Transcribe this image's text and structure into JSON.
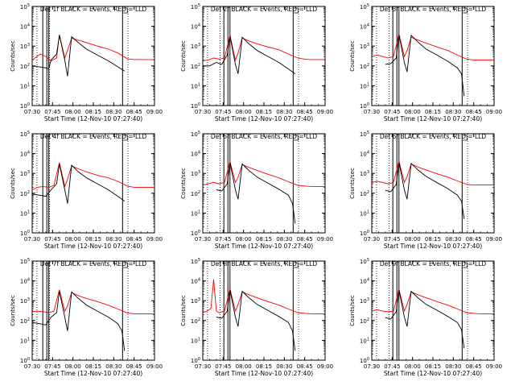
{
  "figure": {
    "y_axis_label": "Counts/sec",
    "x_axis_label": "Start Time (12-Nov-10 07:27:40)"
  },
  "colors": {
    "events": "#000000",
    "lld": "#ff0000",
    "axes": "#000000"
  },
  "chart_data": [
    {
      "type": "line",
      "title": "Det 1f BLACK = Events, RED = LLD",
      "xlabel": "Start Time (12-Nov-10 07:27:40)",
      "ylabel": "Counts/sec",
      "yscale": "log",
      "ylim": [
        1,
        100000
      ],
      "xlim": [
        "07:30",
        "09:00"
      ],
      "x_tick_labels": [
        "07:30",
        "07:45",
        "08:00",
        "08:15",
        "08:30",
        "08:45",
        "09:00"
      ],
      "y_tick_labels": [
        "10^0",
        "10^1",
        "10^2",
        "10^3",
        "10^4",
        "10^5"
      ],
      "grid": false,
      "vertical_markers_minutes": [
        7.8,
        10.8,
        12.2,
        66.5
      ],
      "vertical_dotted_minutes": [
        3.5,
        12.8,
        70.5
      ],
      "events": {
        "x_minutes": [
          0,
          5,
          10,
          12,
          14,
          18,
          20,
          24,
          26,
          29,
          34,
          40,
          48,
          56,
          63,
          68
        ],
        "y": [
          100,
          90,
          80,
          70,
          200,
          400,
          3500,
          200,
          30,
          3000,
          1500,
          700,
          350,
          180,
          90,
          55
        ]
      },
      "lld": {
        "x_minutes": [
          0,
          2,
          6,
          10,
          14,
          18,
          20,
          24,
          26,
          29,
          34,
          40,
          48,
          56,
          63,
          70,
          75,
          80,
          85,
          90
        ],
        "y": [
          200,
          250,
          400,
          300,
          180,
          250,
          3800,
          250,
          600,
          2500,
          2000,
          1500,
          1000,
          700,
          450,
          230,
          210,
          210,
          210,
          210
        ]
      }
    },
    {
      "type": "line",
      "title": "Det 2f BLACK = Events, RED = LLD",
      "xlabel": "Start Time (12-Nov-10 07:27:40)",
      "ylabel": "Counts/sec",
      "yscale": "log",
      "ylim": [
        1,
        100000
      ],
      "xlim": [
        "07:30",
        "09:00"
      ],
      "x_tick_labels": [
        "07:30",
        "07:45",
        "08:00",
        "08:15",
        "08:30",
        "08:45",
        "09:00"
      ],
      "y_tick_labels": [
        "10^0",
        "10^1",
        "10^2",
        "10^3",
        "10^4",
        "10^5"
      ],
      "grid": false,
      "vertical_markers_minutes": [
        15.5,
        18.5,
        20.0,
        66.5
      ],
      "vertical_dotted_minutes": [
        3.5,
        12.8,
        70.5
      ],
      "events": {
        "x_minutes": [
          0,
          5,
          10,
          14,
          18,
          20,
          24,
          26,
          29,
          34,
          40,
          48,
          56,
          63,
          68
        ],
        "y": [
          100,
          100,
          150,
          120,
          350,
          3200,
          120,
          40,
          2800,
          1300,
          600,
          300,
          150,
          70,
          40
        ]
      },
      "lld": {
        "x_minutes": [
          0,
          4,
          8,
          12,
          16,
          20,
          24,
          26,
          29,
          34,
          40,
          48,
          56,
          63,
          70,
          75,
          80,
          85,
          90
        ],
        "y": [
          180,
          200,
          250,
          220,
          250,
          3500,
          200,
          450,
          2600,
          1800,
          1300,
          900,
          650,
          400,
          250,
          220,
          210,
          210,
          210
        ]
      }
    },
    {
      "type": "line",
      "title": "Det 3f BLACK = Events, RED = LLD",
      "xlabel": "Start Time (12-Nov-10 07:27:40)",
      "ylabel": "Counts/sec",
      "yscale": "log",
      "ylim": [
        1,
        100000
      ],
      "xlim": [
        "07:30",
        "09:00"
      ],
      "x_tick_labels": [
        "07:30",
        "07:45",
        "08:00",
        "08:15",
        "08:30",
        "08:45",
        "09:00"
      ],
      "y_tick_labels": [
        "10^0",
        "10^1",
        "10^2",
        "10^3",
        "10^4",
        "10^5"
      ],
      "grid": false,
      "vertical_markers_minutes": [
        15.5,
        18.5,
        20.0,
        66.5
      ],
      "vertical_dotted_minutes": [
        3.5,
        12.8,
        70.5
      ],
      "events": {
        "x_minutes": [
          10,
          14,
          18,
          20,
          24,
          26,
          29,
          34,
          40,
          48,
          56,
          63,
          66,
          68
        ],
        "y": [
          120,
          130,
          250,
          3800,
          150,
          50,
          3500,
          1600,
          700,
          350,
          170,
          80,
          40,
          3
        ]
      },
      "lld": {
        "x_minutes": [
          0,
          4,
          8,
          12,
          16,
          20,
          24,
          26,
          29,
          34,
          40,
          48,
          56,
          63,
          70,
          75,
          80,
          85,
          90
        ],
        "y": [
          300,
          350,
          300,
          250,
          300,
          4000,
          300,
          600,
          2800,
          2000,
          1400,
          900,
          600,
          350,
          220,
          200,
          200,
          200,
          200
        ]
      }
    },
    {
      "type": "line",
      "title": "Det 4f BLACK = Events, RED = LLD",
      "xlabel": "Start Time (12-Nov-10 07:27:40)",
      "ylabel": "Counts/sec",
      "yscale": "log",
      "ylim": [
        1,
        100000
      ],
      "xlim": [
        "07:30",
        "09:00"
      ],
      "x_tick_labels": [
        "07:30",
        "07:45",
        "08:00",
        "08:15",
        "08:30",
        "08:45",
        "09:00"
      ],
      "y_tick_labels": [
        "10^0",
        "10^1",
        "10^2",
        "10^3",
        "10^4",
        "10^5"
      ],
      "grid": false,
      "vertical_markers_minutes": [
        7.8,
        10.8,
        12.2,
        66.5
      ],
      "vertical_dotted_minutes": [
        3.5,
        12.8,
        70.5
      ],
      "events": {
        "x_minutes": [
          0,
          5,
          10,
          14,
          18,
          20,
          24,
          26,
          29,
          34,
          40,
          48,
          56,
          63,
          68
        ],
        "y": [
          90,
          80,
          70,
          150,
          300,
          3000,
          150,
          30,
          2600,
          1200,
          600,
          300,
          150,
          70,
          40
        ]
      },
      "lld": {
        "x_minutes": [
          0,
          4,
          8,
          12,
          16,
          20,
          24,
          26,
          29,
          34,
          40,
          48,
          56,
          63,
          70,
          75,
          80,
          85,
          90
        ],
        "y": [
          150,
          200,
          220,
          200,
          250,
          3500,
          220,
          500,
          2400,
          1700,
          1200,
          800,
          600,
          400,
          230,
          200,
          200,
          200,
          200
        ]
      }
    },
    {
      "type": "line",
      "title": "Det 5f BLACK = Events, RED = LLD",
      "xlabel": "Start Time (12-Nov-10 07:27:40)",
      "ylabel": "Counts/sec",
      "yscale": "log",
      "ylim": [
        1,
        100000
      ],
      "xlim": [
        "07:30",
        "09:00"
      ],
      "x_tick_labels": [
        "07:30",
        "07:45",
        "08:00",
        "08:15",
        "08:30",
        "08:45",
        "09:00"
      ],
      "y_tick_labels": [
        "10^0",
        "10^1",
        "10^2",
        "10^3",
        "10^4",
        "10^5"
      ],
      "grid": false,
      "vertical_markers_minutes": [
        15.5,
        18.5,
        20.0,
        66.5
      ],
      "vertical_dotted_minutes": [
        3.5,
        12.8,
        70.5
      ],
      "events": {
        "x_minutes": [
          10,
          14,
          18,
          20,
          24,
          26,
          29,
          34,
          40,
          48,
          56,
          63,
          66,
          68
        ],
        "y": [
          150,
          130,
          300,
          3500,
          150,
          50,
          3000,
          1400,
          650,
          320,
          160,
          80,
          30,
          3
        ]
      },
      "lld": {
        "x_minutes": [
          0,
          4,
          8,
          12,
          16,
          20,
          24,
          26,
          29,
          34,
          40,
          48,
          56,
          63,
          70,
          75,
          80,
          85,
          90
        ],
        "y": [
          250,
          300,
          350,
          300,
          350,
          4000,
          350,
          650,
          2800,
          2000,
          1400,
          900,
          600,
          380,
          250,
          230,
          220,
          220,
          220
        ]
      }
    },
    {
      "type": "line",
      "title": "Det 6f BLACK = Events, RED = LLD",
      "xlabel": "Start Time (12-Nov-10 07:27:40)",
      "ylabel": "Counts/sec",
      "yscale": "log",
      "ylim": [
        1,
        100000
      ],
      "xlim": [
        "07:30",
        "09:00"
      ],
      "x_tick_labels": [
        "07:30",
        "07:45",
        "08:00",
        "08:15",
        "08:30",
        "08:45",
        "09:00"
      ],
      "y_tick_labels": [
        "10^0",
        "10^1",
        "10^2",
        "10^3",
        "10^4",
        "10^5"
      ],
      "grid": false,
      "vertical_markers_minutes": [
        15.5,
        18.5,
        20.0,
        66.5
      ],
      "vertical_dotted_minutes": [
        3.5,
        12.8,
        70.5
      ],
      "events": {
        "x_minutes": [
          10,
          14,
          18,
          20,
          24,
          26,
          29,
          34,
          40,
          48,
          56,
          63,
          66,
          68
        ],
        "y": [
          140,
          120,
          280,
          3600,
          150,
          50,
          3200,
          1500,
          700,
          340,
          170,
          80,
          40,
          5
        ]
      },
      "lld": {
        "x_minutes": [
          0,
          4,
          8,
          12,
          16,
          20,
          24,
          26,
          29,
          34,
          40,
          48,
          56,
          63,
          70,
          75,
          80,
          85,
          90
        ],
        "y": [
          350,
          400,
          350,
          300,
          350,
          4200,
          350,
          700,
          3000,
          2100,
          1500,
          950,
          650,
          420,
          280,
          260,
          260,
          260,
          260
        ]
      }
    },
    {
      "type": "line",
      "title": "Det 7f BLACK = Events, RED = LLD",
      "xlabel": "Start Time (12-Nov-10 07:27:40)",
      "ylabel": "Counts/sec",
      "yscale": "log",
      "ylim": [
        1,
        100000
      ],
      "xlim": [
        "07:30",
        "09:00"
      ],
      "x_tick_labels": [
        "07:30",
        "07:45",
        "08:00",
        "08:15",
        "08:30",
        "08:45",
        "09:00"
      ],
      "y_tick_labels": [
        "10^0",
        "10^1",
        "10^2",
        "10^3",
        "10^4",
        "10^5"
      ],
      "grid": false,
      "vertical_markers_minutes": [
        7.8,
        10.8,
        12.2,
        66.5
      ],
      "vertical_dotted_minutes": [
        3.5,
        12.8,
        70.5
      ],
      "events": {
        "x_minutes": [
          0,
          5,
          10,
          14,
          18,
          20,
          24,
          26,
          29,
          34,
          40,
          48,
          56,
          63,
          66,
          68
        ],
        "y": [
          80,
          70,
          60,
          150,
          250,
          3000,
          150,
          30,
          2800,
          1300,
          600,
          300,
          150,
          70,
          30,
          3
        ]
      },
      "lld": {
        "x_minutes": [
          0,
          4,
          8,
          12,
          16,
          20,
          24,
          26,
          29,
          34,
          40,
          48,
          56,
          63,
          70,
          75,
          80,
          85,
          90
        ],
        "y": [
          280,
          300,
          280,
          250,
          300,
          3600,
          300,
          550,
          2600,
          1800,
          1300,
          900,
          600,
          380,
          240,
          220,
          220,
          220,
          220
        ]
      }
    },
    {
      "type": "line",
      "title": "Det 8f BLACK = Events, RED = LLD",
      "xlabel": "Start Time (12-Nov-10 07:27:40)",
      "ylabel": "Counts/sec",
      "yscale": "log",
      "ylim": [
        1,
        100000
      ],
      "xlim": [
        "07:30",
        "09:00"
      ],
      "x_tick_labels": [
        "07:30",
        "07:45",
        "08:00",
        "08:15",
        "08:30",
        "08:45",
        "09:00"
      ],
      "y_tick_labels": [
        "10^0",
        "10^1",
        "10^2",
        "10^3",
        "10^4",
        "10^5"
      ],
      "grid": false,
      "vertical_markers_minutes": [
        15.5,
        18.5,
        20.0,
        66.5
      ],
      "vertical_dotted_minutes": [
        3.5,
        12.8,
        70.5
      ],
      "events": {
        "x_minutes": [
          10,
          14,
          18,
          20,
          24,
          26,
          29,
          34,
          40,
          48,
          56,
          63,
          66,
          68
        ],
        "y": [
          150,
          130,
          300,
          3500,
          150,
          50,
          3000,
          1400,
          650,
          320,
          160,
          80,
          30,
          3
        ]
      },
      "lld": {
        "x_minutes": [
          0,
          3,
          6,
          8,
          10,
          12,
          16,
          20,
          24,
          26,
          29,
          34,
          40,
          48,
          56,
          63,
          70,
          75,
          80,
          85,
          90
        ],
        "y": [
          250,
          300,
          400,
          12000,
          300,
          250,
          300,
          4000,
          300,
          650,
          2800,
          2000,
          1400,
          900,
          600,
          380,
          250,
          230,
          220,
          220,
          220
        ]
      }
    },
    {
      "type": "line",
      "title": "Det 9f BLACK = Events, RED = LLD",
      "xlabel": "Start Time (12-Nov-10 07:27:40)",
      "ylabel": "Counts/sec",
      "yscale": "log",
      "ylim": [
        1,
        100000
      ],
      "xlim": [
        "07:30",
        "09:00"
      ],
      "x_tick_labels": [
        "07:30",
        "07:45",
        "08:00",
        "08:15",
        "08:30",
        "08:45",
        "09:00"
      ],
      "y_tick_labels": [
        "10^0",
        "10^1",
        "10^2",
        "10^3",
        "10^4",
        "10^5"
      ],
      "grid": false,
      "vertical_markers_minutes": [
        15.5,
        18.5,
        20.0,
        66.5
      ],
      "vertical_dotted_minutes": [
        3.5,
        12.8,
        70.5
      ],
      "events": {
        "x_minutes": [
          10,
          14,
          18,
          20,
          24,
          26,
          29,
          34,
          40,
          48,
          56,
          63,
          66,
          68
        ],
        "y": [
          140,
          120,
          280,
          3400,
          150,
          50,
          3000,
          1400,
          650,
          330,
          160,
          80,
          35,
          4
        ]
      },
      "lld": {
        "x_minutes": [
          0,
          4,
          8,
          12,
          16,
          20,
          24,
          26,
          29,
          34,
          40,
          48,
          56,
          63,
          70,
          75,
          80,
          85,
          90
        ],
        "y": [
          300,
          350,
          300,
          280,
          300,
          3800,
          300,
          650,
          2800,
          2000,
          1400,
          900,
          600,
          380,
          250,
          230,
          220,
          220,
          220
        ]
      }
    }
  ]
}
